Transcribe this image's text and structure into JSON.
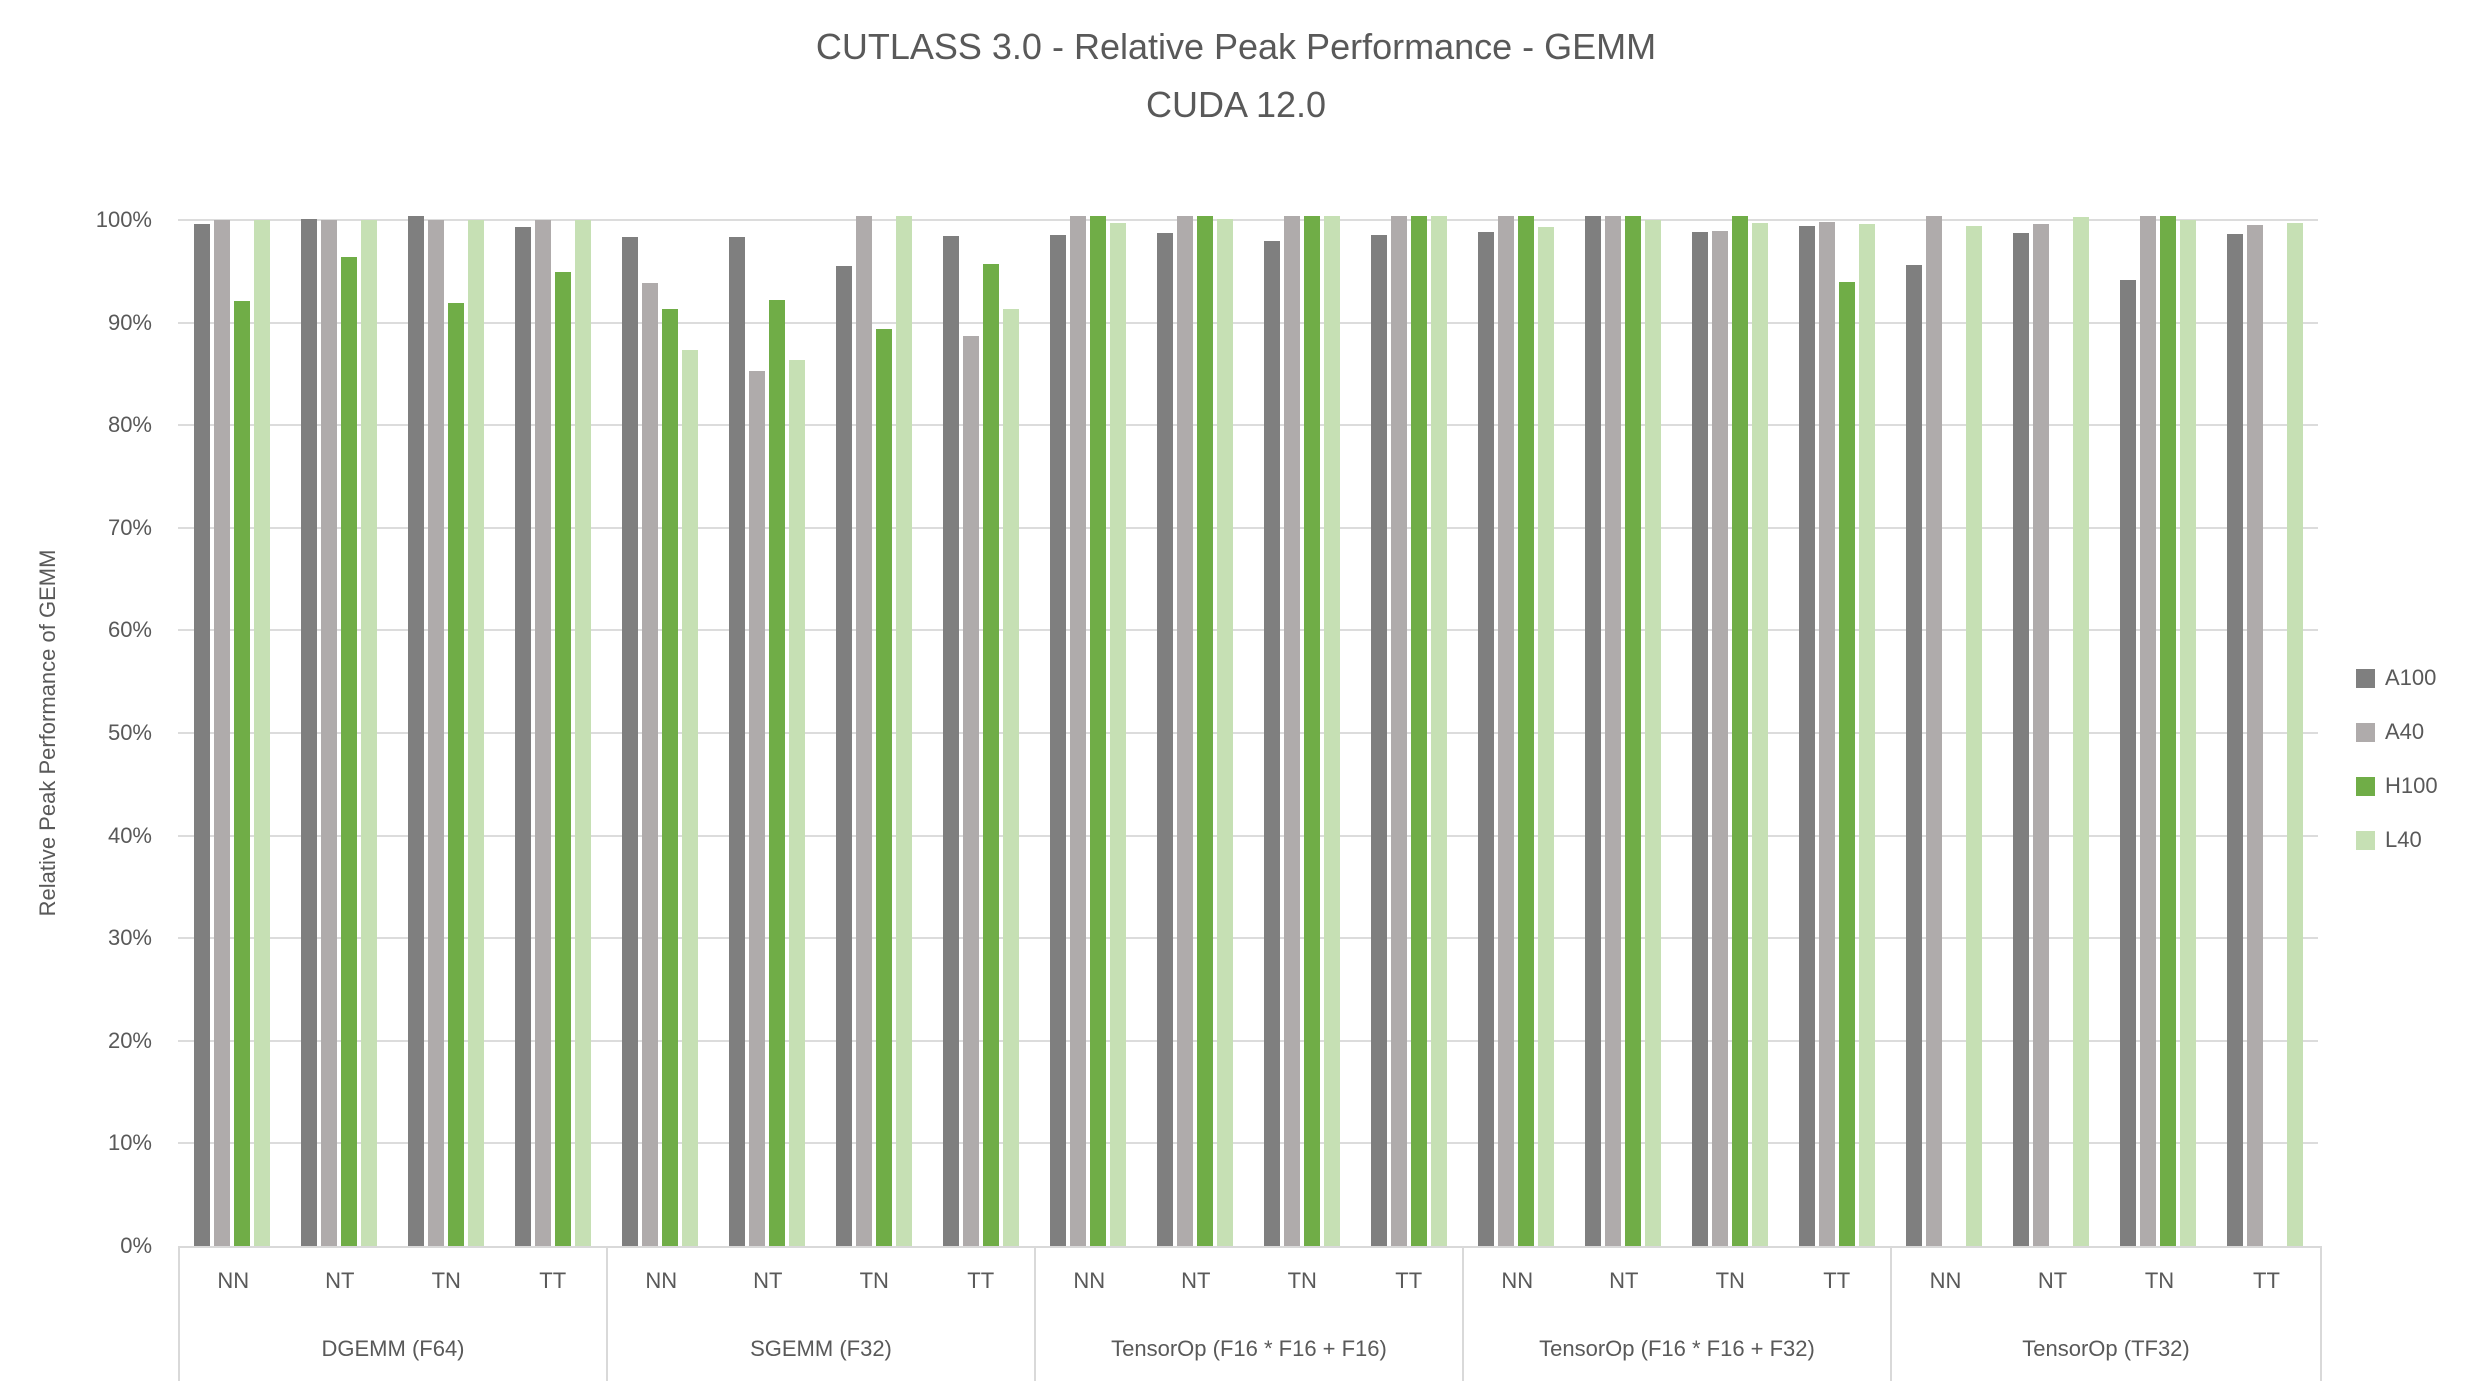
{
  "chart": {
    "title_line1": "CUTLASS 3.0 - Relative Peak Performance - GEMM",
    "title_line2": "CUDA 12.0",
    "ylabel": "Relative Peak Performance of GEMM"
  },
  "colors": {
    "grid": "#dcdcdc",
    "axis_border": "#d9d9d9",
    "text": "#595959",
    "background": "#ffffff"
  },
  "chart_data": {
    "type": "bar",
    "title": "CUTLASS 3.0 - Relative Peak Performance - GEMM",
    "subtitle": "CUDA 12.0",
    "xlabel": "",
    "ylabel": "Relative Peak Performance of GEMM",
    "unit": "percent",
    "ylim": [
      0,
      100
    ],
    "ytick_step": 10,
    "yticks": [
      "0%",
      "10%",
      "20%",
      "30%",
      "40%",
      "50%",
      "60%",
      "70%",
      "80%",
      "90%",
      "100%"
    ],
    "grid": true,
    "legend_position": "right",
    "categories": [
      "NN",
      "NT",
      "TN",
      "TT"
    ],
    "group_labels": [
      "DGEMM (F64)",
      "SGEMM (F32)",
      "TensorOp (F16 * F16 + F16)",
      "TensorOp (F16 * F16 + F32)",
      "TensorOp (TF32)"
    ],
    "series": [
      {
        "name": "A100",
        "color": "#7f7f7f",
        "values": [
          [
            99.6,
            100.1,
            100.4,
            99.3
          ],
          [
            98.3,
            98.3,
            95.5,
            98.4
          ],
          [
            98.5,
            98.7,
            98.0,
            98.5
          ],
          [
            98.8,
            100.4,
            98.8,
            99.4
          ],
          [
            95.6,
            98.7,
            94.2,
            98.6
          ]
        ]
      },
      {
        "name": "A40",
        "color": "#afabab",
        "values": [
          [
            100.0,
            100.0,
            100.0,
            100.0
          ],
          [
            93.9,
            85.3,
            100.4,
            88.7
          ],
          [
            100.4,
            100.4,
            100.4,
            100.4
          ],
          [
            100.4,
            100.4,
            98.9,
            99.8
          ],
          [
            100.4,
            99.6,
            100.4,
            99.5
          ]
        ]
      },
      {
        "name": "H100",
        "color": "#70ad47",
        "values": [
          [
            92.1,
            96.4,
            91.9,
            94.9
          ],
          [
            91.3,
            92.2,
            89.4,
            95.7
          ],
          [
            100.4,
            100.4,
            100.4,
            100.4
          ],
          [
            100.4,
            100.4,
            100.4,
            94.0
          ],
          [
            0,
            0,
            100.4,
            0
          ]
        ]
      },
      {
        "name": "L40",
        "color": "#c6e0b4",
        "values": [
          [
            100.0,
            100.0,
            100.0,
            100.0
          ],
          [
            87.3,
            86.4,
            100.4,
            91.3
          ],
          [
            99.7,
            100.1,
            100.4,
            100.4
          ],
          [
            99.3,
            100.0,
            99.7,
            99.6
          ],
          [
            99.4,
            100.3,
            100.0,
            99.7
          ]
        ]
      }
    ]
  }
}
